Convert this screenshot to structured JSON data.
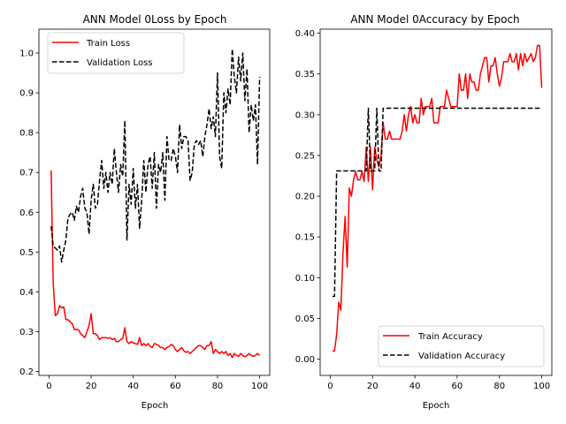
{
  "chart_data": [
    {
      "type": "line",
      "title": "ANN Model 0Loss by Epoch",
      "xlabel": "Epoch",
      "ylabel": "",
      "xlim": [
        -4.8,
        104.8
      ],
      "ylim": [
        0.19,
        1.06
      ],
      "xticks": [
        0,
        20,
        40,
        60,
        80,
        100
      ],
      "yticks": [
        0.2,
        0.3,
        0.4,
        0.5,
        0.6,
        0.7,
        0.8,
        0.9,
        1.0
      ],
      "ytick_labels": [
        "0.2",
        "0.3",
        "0.4",
        "0.5",
        "0.6",
        "0.7",
        "0.8",
        "0.9",
        "1.0"
      ],
      "legend": "top-left",
      "grid": false,
      "x": [
        1,
        2,
        3,
        4,
        5,
        6,
        7,
        8,
        9,
        10,
        11,
        12,
        13,
        14,
        15,
        16,
        17,
        18,
        19,
        20,
        21,
        22,
        23,
        24,
        25,
        26,
        27,
        28,
        29,
        30,
        31,
        32,
        33,
        34,
        35,
        36,
        37,
        38,
        39,
        40,
        41,
        42,
        43,
        44,
        45,
        46,
        47,
        48,
        49,
        50,
        51,
        52,
        53,
        54,
        55,
        56,
        57,
        58,
        59,
        60,
        61,
        62,
        63,
        64,
        65,
        66,
        67,
        68,
        69,
        70,
        71,
        72,
        73,
        74,
        75,
        76,
        77,
        78,
        79,
        80,
        81,
        82,
        83,
        84,
        85,
        86,
        87,
        88,
        89,
        90,
        91,
        92,
        93,
        94,
        95,
        96,
        97,
        98,
        99,
        100
      ],
      "series": [
        {
          "name": "Train Loss",
          "color": "#ff0000",
          "dash": "solid",
          "values": [
            0.705,
            0.42,
            0.34,
            0.345,
            0.365,
            0.36,
            0.362,
            0.33,
            0.33,
            0.325,
            0.32,
            0.305,
            0.305,
            0.305,
            0.295,
            0.29,
            0.285,
            0.3,
            0.315,
            0.345,
            0.295,
            0.295,
            0.29,
            0.28,
            0.285,
            0.285,
            0.285,
            0.283,
            0.285,
            0.28,
            0.283,
            0.275,
            0.275,
            0.28,
            0.283,
            0.31,
            0.275,
            0.27,
            0.275,
            0.272,
            0.27,
            0.268,
            0.285,
            0.265,
            0.27,
            0.265,
            0.27,
            0.263,
            0.26,
            0.27,
            0.268,
            0.265,
            0.26,
            0.26,
            0.255,
            0.26,
            0.263,
            0.268,
            0.265,
            0.255,
            0.25,
            0.255,
            0.26,
            0.252,
            0.248,
            0.25,
            0.245,
            0.25,
            0.255,
            0.26,
            0.265,
            0.265,
            0.26,
            0.255,
            0.265,
            0.265,
            0.275,
            0.245,
            0.255,
            0.25,
            0.245,
            0.25,
            0.245,
            0.25,
            0.24,
            0.245,
            0.235,
            0.245,
            0.24,
            0.238,
            0.245,
            0.24,
            0.237,
            0.24,
            0.245,
            0.24,
            0.238,
            0.24,
            0.245,
            0.24
          ]
        },
        {
          "name": "Validation Loss",
          "color": "#000000",
          "dash": "dashed",
          "values": [
            0.565,
            0.515,
            0.51,
            0.505,
            0.515,
            0.475,
            0.505,
            0.53,
            0.585,
            0.595,
            0.6,
            0.58,
            0.615,
            0.6,
            0.64,
            0.66,
            0.61,
            0.6,
            0.545,
            0.63,
            0.67,
            0.61,
            0.62,
            0.68,
            0.73,
            0.66,
            0.7,
            0.65,
            0.7,
            0.67,
            0.76,
            0.7,
            0.65,
            0.72,
            0.69,
            0.83,
            0.53,
            0.67,
            0.62,
            0.71,
            0.61,
            0.67,
            0.56,
            0.63,
            0.73,
            0.65,
            0.72,
            0.74,
            0.66,
            0.75,
            0.61,
            0.72,
            0.7,
            0.75,
            0.63,
            0.79,
            0.73,
            0.73,
            0.76,
            0.74,
            0.7,
            0.82,
            0.76,
            0.79,
            0.79,
            0.78,
            0.68,
            0.7,
            0.77,
            0.78,
            0.77,
            0.78,
            0.74,
            0.79,
            0.82,
            0.86,
            0.81,
            0.84,
            0.79,
            0.95,
            0.74,
            0.71,
            0.9,
            0.85,
            0.91,
            0.87,
            1.01,
            0.94,
            0.9,
            0.99,
            0.93,
            1.0,
            0.88,
            0.96,
            0.8,
            0.87,
            0.83,
            0.87,
            0.72,
            0.94
          ]
        }
      ]
    },
    {
      "type": "line",
      "title": "ANN Model 0Accuracy by Epoch",
      "xlabel": "Epoch",
      "ylabel": "",
      "xlim": [
        -4.8,
        104.8
      ],
      "ylim": [
        -0.02,
        0.405
      ],
      "xticks": [
        0,
        20,
        40,
        60,
        80,
        100
      ],
      "yticks": [
        0.0,
        0.05,
        0.1,
        0.15,
        0.2,
        0.25,
        0.3,
        0.35,
        0.4
      ],
      "ytick_labels": [
        "0.00",
        "0.05",
        "0.10",
        "0.15",
        "0.20",
        "0.25",
        "0.30",
        "0.35",
        "0.40"
      ],
      "legend": "bottom-right",
      "grid": false,
      "x": [
        1,
        2,
        3,
        4,
        5,
        6,
        7,
        8,
        9,
        10,
        11,
        12,
        13,
        14,
        15,
        16,
        17,
        18,
        19,
        20,
        21,
        22,
        23,
        24,
        25,
        26,
        27,
        28,
        29,
        30,
        31,
        32,
        33,
        34,
        35,
        36,
        37,
        38,
        39,
        40,
        41,
        42,
        43,
        44,
        45,
        46,
        47,
        48,
        49,
        50,
        51,
        52,
        53,
        54,
        55,
        56,
        57,
        58,
        59,
        60,
        61,
        62,
        63,
        64,
        65,
        66,
        67,
        68,
        69,
        70,
        71,
        72,
        73,
        74,
        75,
        76,
        77,
        78,
        79,
        80,
        81,
        82,
        83,
        84,
        85,
        86,
        87,
        88,
        89,
        90,
        91,
        92,
        93,
        94,
        95,
        96,
        97,
        98,
        99,
        100
      ],
      "series": [
        {
          "name": "Train Accuracy",
          "color": "#ff0000",
          "dash": "solid",
          "values": [
            0.01,
            0.01,
            0.03,
            0.07,
            0.06,
            0.13,
            0.175,
            0.113,
            0.21,
            0.2,
            0.22,
            0.23,
            0.22,
            0.22,
            0.23,
            0.218,
            0.26,
            0.218,
            0.26,
            0.208,
            0.26,
            0.245,
            0.236,
            0.25,
            0.29,
            0.27,
            0.27,
            0.28,
            0.27,
            0.27,
            0.27,
            0.27,
            0.27,
            0.28,
            0.3,
            0.28,
            0.3,
            0.31,
            0.29,
            0.3,
            0.29,
            0.29,
            0.32,
            0.3,
            0.31,
            0.31,
            0.31,
            0.32,
            0.29,
            0.29,
            0.29,
            0.31,
            0.31,
            0.31,
            0.33,
            0.32,
            0.31,
            0.31,
            0.31,
            0.31,
            0.35,
            0.33,
            0.33,
            0.35,
            0.32,
            0.35,
            0.34,
            0.34,
            0.33,
            0.33,
            0.35,
            0.36,
            0.37,
            0.37,
            0.34,
            0.36,
            0.36,
            0.37,
            0.35,
            0.335,
            0.345,
            0.365,
            0.365,
            0.365,
            0.375,
            0.365,
            0.365,
            0.375,
            0.355,
            0.375,
            0.36,
            0.375,
            0.365,
            0.37,
            0.375,
            0.365,
            0.37,
            0.385,
            0.385,
            0.333
          ]
        },
        {
          "name": "Validation Accuracy",
          "color": "#000000",
          "dash": "dashed",
          "values": [
            0.077,
            0.077,
            0.231,
            0.231,
            0.231,
            0.231,
            0.231,
            0.231,
            0.231,
            0.231,
            0.231,
            0.231,
            0.231,
            0.231,
            0.231,
            0.231,
            0.231,
            0.308,
            0.231,
            0.231,
            0.231,
            0.308,
            0.231,
            0.231,
            0.308,
            0.308,
            0.308,
            0.308,
            0.308,
            0.308,
            0.308,
            0.308,
            0.308,
            0.308,
            0.308,
            0.308,
            0.308,
            0.308,
            0.308,
            0.308,
            0.308,
            0.308,
            0.308,
            0.308,
            0.308,
            0.308,
            0.308,
            0.308,
            0.308,
            0.308,
            0.308,
            0.308,
            0.308,
            0.308,
            0.308,
            0.308,
            0.308,
            0.308,
            0.308,
            0.308,
            0.308,
            0.308,
            0.308,
            0.308,
            0.308,
            0.308,
            0.308,
            0.308,
            0.308,
            0.308,
            0.308,
            0.308,
            0.308,
            0.308,
            0.308,
            0.308,
            0.308,
            0.308,
            0.308,
            0.308,
            0.308,
            0.308,
            0.308,
            0.308,
            0.308,
            0.308,
            0.308,
            0.308,
            0.308,
            0.308,
            0.308,
            0.308,
            0.308,
            0.308,
            0.308,
            0.308,
            0.308,
            0.308,
            0.308,
            0.308
          ]
        }
      ]
    }
  ]
}
